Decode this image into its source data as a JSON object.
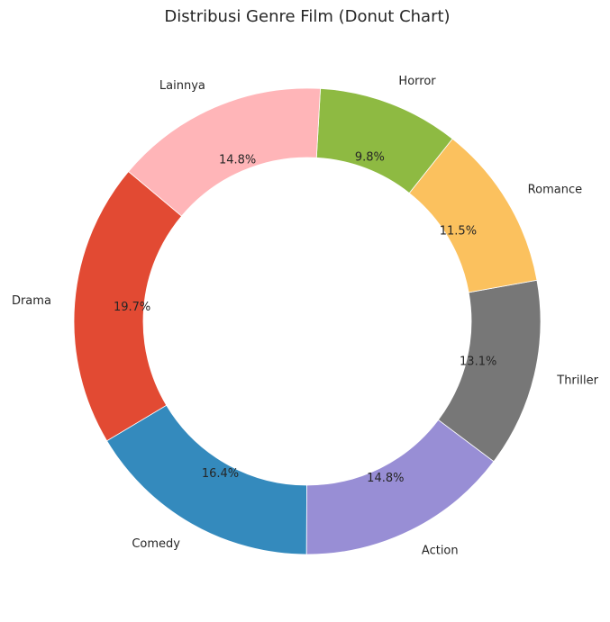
{
  "chart_data": {
    "type": "pie",
    "donut": true,
    "title": "Distribusi Genre Film (Donut Chart)",
    "categories": [
      "Drama",
      "Comedy",
      "Action",
      "Thriller",
      "Romance",
      "Horror",
      "Lainnya"
    ],
    "values": [
      19.7,
      16.4,
      14.8,
      13.1,
      11.5,
      9.8,
      14.8
    ],
    "value_labels": [
      "19.7%",
      "16.4%",
      "14.8%",
      "13.1%",
      "11.5%",
      "9.8%",
      "14.8%"
    ],
    "colors": [
      "#E24A33",
      "#348ABD",
      "#988ED5",
      "#777777",
      "#FBC15E",
      "#8EBA42",
      "#FFB5B8"
    ],
    "start_angle_deg": 140,
    "direction": "counterclockwise",
    "legend": "none",
    "grid": false
  }
}
